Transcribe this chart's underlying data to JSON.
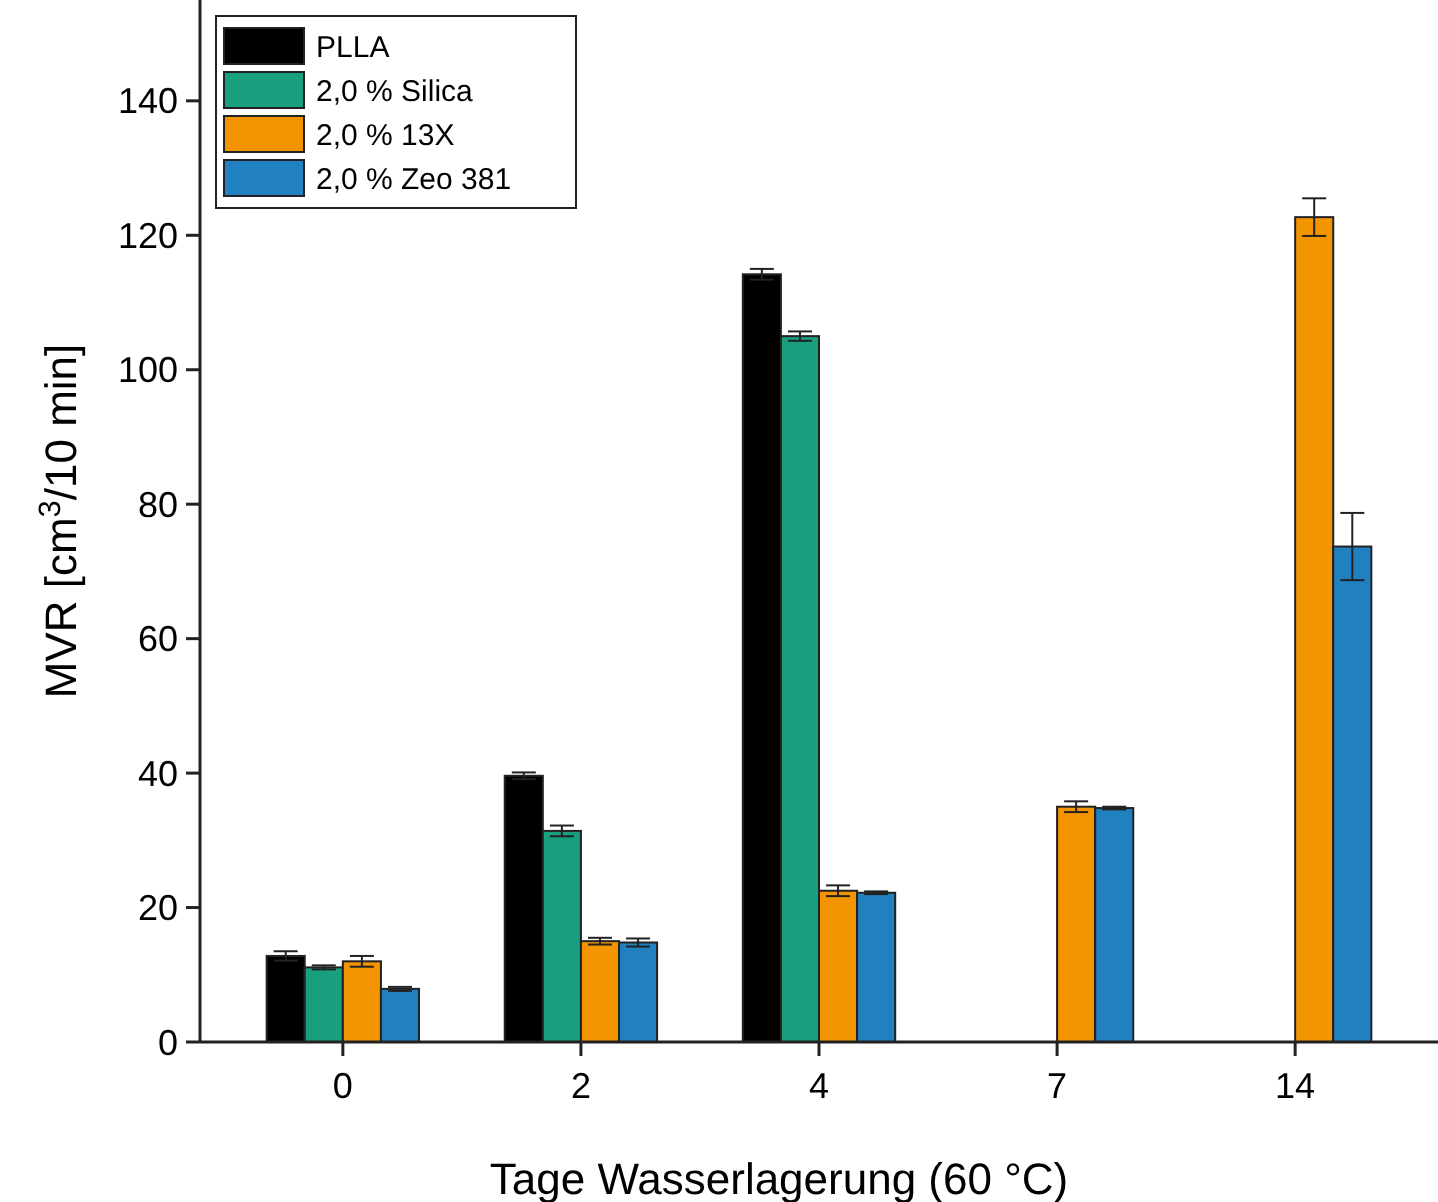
{
  "chart_data": {
    "type": "bar",
    "xlabel": "Tage Wasserlagerung (60 °C)",
    "ylabel": "MVR [cm$^{3}$/10 min]",
    "categories": [
      "0",
      "2",
      "4",
      "7",
      "14"
    ],
    "ylim": [
      0,
      155
    ],
    "yticks": [
      0,
      20,
      40,
      60,
      80,
      100,
      120,
      140
    ],
    "legend": "top left",
    "grid": false,
    "series": [
      {
        "name": "PLLA",
        "color": "#000000",
        "values": [
          12.8,
          39.6,
          114.2,
          null,
          null
        ],
        "errors": [
          0.7,
          0.5,
          0.8,
          null,
          null
        ]
      },
      {
        "name": "2,0 % Silica",
        "color": "#199e7e",
        "values": [
          11.1,
          31.4,
          105,
          null,
          null
        ],
        "errors": [
          0.3,
          0.8,
          0.7,
          null,
          null
        ]
      },
      {
        "name": "2,0 % 13X",
        "color": "#f29500",
        "values": [
          12,
          15,
          22.5,
          35,
          122.7
        ],
        "errors": [
          0.8,
          0.5,
          0.8,
          0.8,
          2.8
        ]
      },
      {
        "name": "2,0 % Zeo 381",
        "color": "#2080c0",
        "values": [
          7.9,
          14.8,
          22.2,
          34.8,
          73.7
        ],
        "errors": [
          0.3,
          0.6,
          0.2,
          0.2,
          5
        ]
      }
    ]
  }
}
